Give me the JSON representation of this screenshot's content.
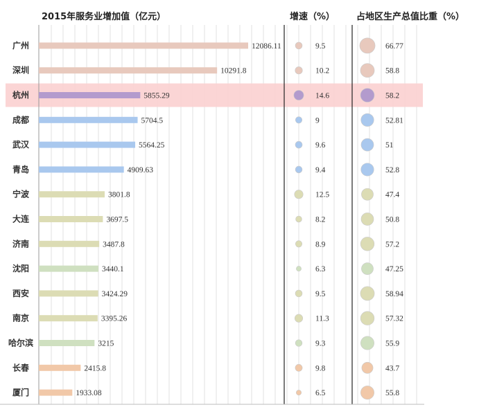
{
  "chart_data": {
    "type": "bar",
    "headers": {
      "bar": "2015年服务业增加值（亿元）",
      "growth": "增速（%）",
      "share": "占地区生产总值比重（%）"
    },
    "highlight": "杭州",
    "series": [
      {
        "name": "2015年服务业增加值（亿元）",
        "values": [
          12086.11,
          10291.8,
          5855.29,
          5704.5,
          5564.25,
          4909.63,
          3801.8,
          3697.5,
          3487.8,
          3440.1,
          3424.29,
          3395.26,
          3215,
          2415.8,
          1933.08
        ]
      },
      {
        "name": "增速（%）",
        "values": [
          9.5,
          10.2,
          14.6,
          9,
          9.6,
          9.4,
          12.5,
          8.2,
          8.9,
          6.3,
          9.5,
          11.3,
          9.3,
          9.8,
          6.5
        ]
      },
      {
        "name": "占地区生产总值比重（%）",
        "values": [
          66.77,
          58.8,
          58.2,
          52.81,
          51,
          52.8,
          47.4,
          50.8,
          57.2,
          47.25,
          58.94,
          57.32,
          55.9,
          43.7,
          55.8
        ]
      }
    ],
    "categories": [
      "广州",
      "深圳",
      "杭州",
      "成都",
      "武汉",
      "青岛",
      "宁波",
      "大连",
      "济南",
      "沈阳",
      "西安",
      "南京",
      "哈尔滨",
      "长春",
      "厦门"
    ],
    "labels": {
      "bar": [
        "12086.11",
        "10291.8",
        "5855.29",
        "5704.5",
        "5564.25",
        "4909.63",
        "3801.8",
        "3697.5",
        "3487.8",
        "3440.1",
        "3424.29",
        "3395.26",
        "3215",
        "2415.8",
        "1933.08"
      ],
      "growth": [
        "9.5",
        "10.2",
        "14.6",
        "9",
        "9.6",
        "9.4",
        "12.5",
        "8.2",
        "8.9",
        "6.3",
        "9.5",
        "11.3",
        "9.3",
        "9.8",
        "6.5"
      ],
      "share": [
        "66.77",
        "58.8",
        "58.2",
        "52.81",
        "51",
        "52.8",
        "47.4",
        "50.8",
        "57.2",
        "47.25",
        "58.94",
        "57.32",
        "55.9",
        "43.7",
        "55.8"
      ]
    },
    "group_colors": [
      "#e8c9bd",
      "#e8c9bd",
      "#b39bcd",
      "#a9c8ee",
      "#a9c8ee",
      "#a9c8ee",
      "#dcdcb4",
      "#dcdcb4",
      "#dcdcb4",
      "#cfe0c0",
      "#dcdcb4",
      "#dcdcb4",
      "#cfe0c0",
      "#f1c8a8",
      "#f1c8a8"
    ],
    "highlight_color": "#fbd0d0",
    "grid": true
  }
}
